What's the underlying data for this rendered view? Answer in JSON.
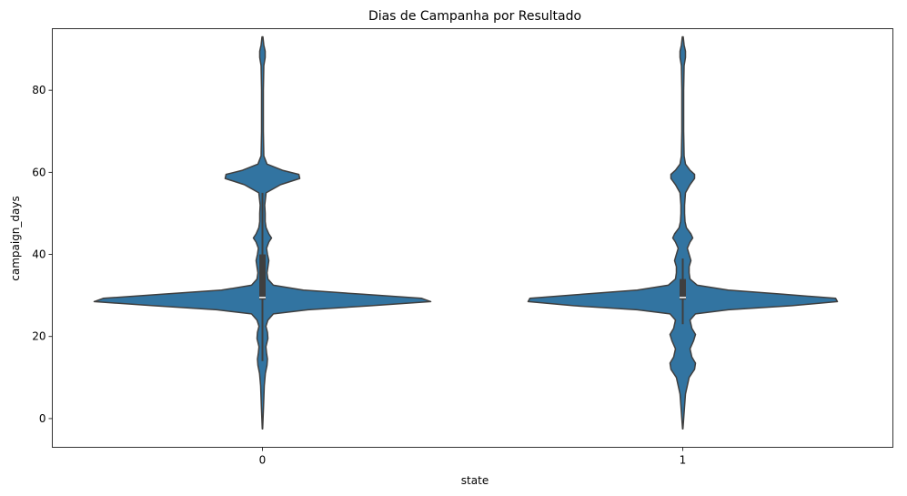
{
  "chart_data": {
    "type": "violin",
    "title": "Dias de Campanha por Resultado",
    "xlabel": "state",
    "ylabel": "campaign_days",
    "categories": [
      "0",
      "1"
    ],
    "yticks": [
      0,
      20,
      40,
      60,
      80
    ],
    "ylim": [
      -7,
      95
    ],
    "grid": false,
    "violin_color": "#3274a1",
    "edge_color": "#3f3f3f",
    "violins": [
      {
        "category": "0",
        "min": -2.5,
        "max": 93,
        "q1": 29,
        "median": 29.5,
        "q3": 40,
        "whisker_low": 14,
        "whisker_high": 55,
        "profile": [
          [
            -2.5,
            0.2
          ],
          [
            3,
            1.2
          ],
          [
            8,
            2
          ],
          [
            11,
            3.2
          ],
          [
            13,
            5
          ],
          [
            14.5,
            5.5
          ],
          [
            16,
            4.5
          ],
          [
            17.5,
            3.8
          ],
          [
            19.5,
            6
          ],
          [
            21,
            5.5
          ],
          [
            22.5,
            3.8
          ],
          [
            24,
            6
          ],
          [
            25.5,
            12
          ],
          [
            26.5,
            50
          ],
          [
            27.5,
            120
          ],
          [
            28.5,
            185
          ],
          [
            29.3,
            175
          ],
          [
            30.3,
            110
          ],
          [
            31.3,
            45
          ],
          [
            32.5,
            12
          ],
          [
            34,
            6
          ],
          [
            35.5,
            5
          ],
          [
            37,
            6
          ],
          [
            38.5,
            7
          ],
          [
            40,
            5.5
          ],
          [
            41.5,
            4.5
          ],
          [
            43,
            7
          ],
          [
            44,
            10
          ],
          [
            45,
            7
          ],
          [
            46.5,
            4
          ],
          [
            48,
            3
          ],
          [
            50,
            3
          ],
          [
            52,
            2.5
          ],
          [
            55,
            4
          ],
          [
            57,
            20
          ],
          [
            58.5,
            41
          ],
          [
            59.5,
            40
          ],
          [
            60.5,
            22
          ],
          [
            62,
            5
          ],
          [
            64,
            1.5
          ],
          [
            70,
            1
          ],
          [
            80,
            1
          ],
          [
            86,
            1.5
          ],
          [
            88,
            3
          ],
          [
            89.5,
            3
          ],
          [
            91,
            1.5
          ],
          [
            93,
            0.5
          ]
        ]
      },
      {
        "category": "1",
        "min": -2.5,
        "max": 93,
        "q1": 29,
        "median": 29.5,
        "q3": 34,
        "whisker_low": 23,
        "whisker_high": 39,
        "profile": [
          [
            -2.5,
            0.2
          ],
          [
            3,
            2
          ],
          [
            6,
            3
          ],
          [
            8,
            5
          ],
          [
            10,
            7
          ],
          [
            12,
            13
          ],
          [
            13.5,
            14
          ],
          [
            15,
            10
          ],
          [
            17,
            8
          ],
          [
            19,
            12
          ],
          [
            20.5,
            14
          ],
          [
            22,
            10
          ],
          [
            24,
            8
          ],
          [
            25.5,
            14
          ],
          [
            26.5,
            50
          ],
          [
            27.5,
            120
          ],
          [
            28.5,
            170
          ],
          [
            29.3,
            168
          ],
          [
            30.3,
            110
          ],
          [
            31.3,
            50
          ],
          [
            32.5,
            16
          ],
          [
            34,
            8
          ],
          [
            35.5,
            7
          ],
          [
            37,
            7
          ],
          [
            38.5,
            9
          ],
          [
            40,
            7
          ],
          [
            41.5,
            5
          ],
          [
            43,
            8
          ],
          [
            44,
            11
          ],
          [
            45,
            9
          ],
          [
            46.5,
            4
          ],
          [
            48,
            2.5
          ],
          [
            50,
            2
          ],
          [
            52,
            2
          ],
          [
            55,
            3
          ],
          [
            57,
            8
          ],
          [
            58.5,
            13
          ],
          [
            59.5,
            13
          ],
          [
            60.5,
            8
          ],
          [
            62,
            3
          ],
          [
            64,
            1.5
          ],
          [
            70,
            1
          ],
          [
            80,
            1
          ],
          [
            86,
            1.5
          ],
          [
            88,
            3
          ],
          [
            89.5,
            3
          ],
          [
            91,
            1.5
          ],
          [
            93,
            0.5
          ]
        ]
      }
    ]
  }
}
